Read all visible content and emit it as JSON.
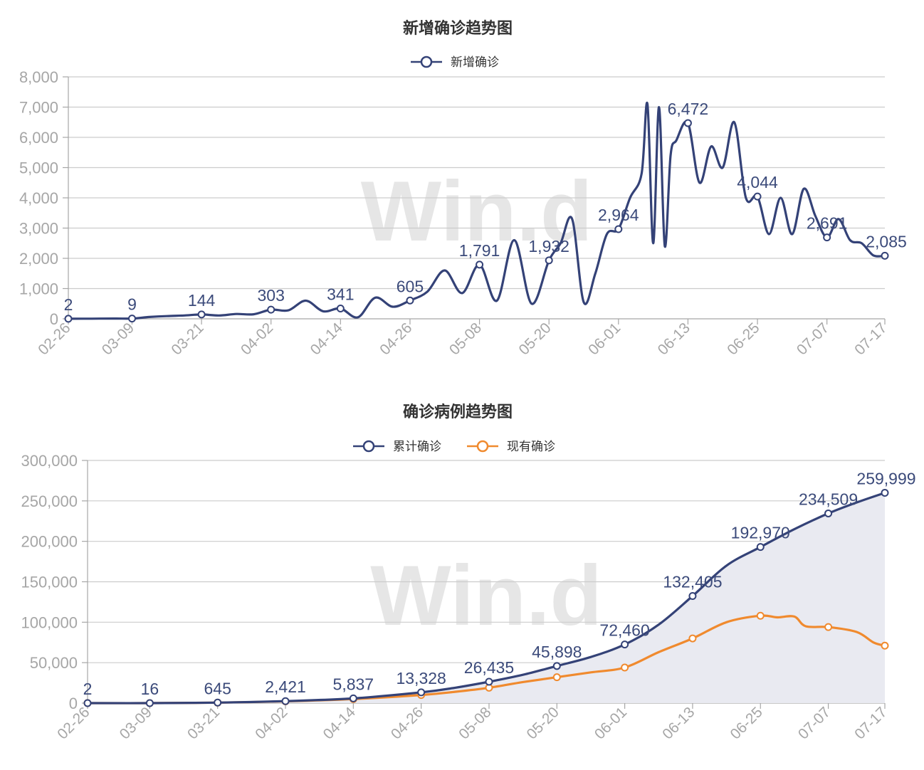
{
  "watermark": "Win.d",
  "colors": {
    "navy": "#344277",
    "orange": "#f08a2e",
    "grid": "#cccccc",
    "axis": "#a6a6a6",
    "area": "#e9eaf1"
  },
  "chart_data": [
    {
      "type": "line",
      "title": "新增确诊趋势图",
      "legend": [
        "新增确诊"
      ],
      "legend_position": "top-center",
      "grid": true,
      "ylim": [
        0,
        8000
      ],
      "yticks": [
        "0",
        "1,000",
        "2,000",
        "3,000",
        "4,000",
        "5,000",
        "6,000",
        "7,000",
        "8,000"
      ],
      "xticks": [
        "02-26",
        "03-09",
        "03-21",
        "04-02",
        "04-14",
        "04-26",
        "05-08",
        "05-20",
        "06-01",
        "06-13",
        "06-25",
        "07-07",
        "07-17"
      ],
      "series": [
        {
          "name": "新增确诊",
          "color": "#344277",
          "x": [
            "02-26",
            "03-02",
            "03-06",
            "03-09",
            "03-12",
            "03-15",
            "03-18",
            "03-21",
            "03-24",
            "03-27",
            "03-30",
            "04-02",
            "04-05",
            "04-08",
            "04-11",
            "04-14",
            "04-17",
            "04-20",
            "04-23",
            "04-26",
            "04-29",
            "05-02",
            "05-05",
            "05-08",
            "05-11",
            "05-14",
            "05-17",
            "05-20",
            "05-22",
            "05-24",
            "05-26",
            "05-28",
            "05-30",
            "06-01",
            "06-03",
            "06-05",
            "06-06",
            "06-07",
            "06-08",
            "06-09",
            "06-10",
            "06-11",
            "06-13",
            "06-15",
            "06-17",
            "06-19",
            "06-21",
            "06-23",
            "06-25",
            "06-27",
            "06-29",
            "07-01",
            "07-03",
            "07-05",
            "07-07",
            "07-09",
            "07-11",
            "07-13",
            "07-15",
            "07-17"
          ],
          "y": [
            2,
            5,
            10,
            9,
            60,
            90,
            110,
            144,
            110,
            160,
            150,
            303,
            280,
            600,
            250,
            341,
            50,
            700,
            400,
            605,
            900,
            1600,
            850,
            1791,
            600,
            2600,
            500,
            1932,
            2500,
            3300,
            550,
            1500,
            2800,
            2964,
            4000,
            4800,
            7100,
            2500,
            7000,
            2400,
            5400,
            5900,
            6472,
            4500,
            5700,
            5000,
            6500,
            4000,
            4044,
            2800,
            4000,
            2800,
            4300,
            3400,
            2691,
            3300,
            2600,
            2500,
            2100,
            2085
          ],
          "labeled_points": [
            {
              "x": "02-26",
              "value": 2,
              "label": "2"
            },
            {
              "x": "03-09",
              "value": 9,
              "label": "9"
            },
            {
              "x": "03-21",
              "value": 144,
              "label": "144"
            },
            {
              "x": "04-02",
              "value": 303,
              "label": "303"
            },
            {
              "x": "04-14",
              "value": 341,
              "label": "341"
            },
            {
              "x": "04-26",
              "value": 605,
              "label": "605"
            },
            {
              "x": "05-08",
              "value": 1791,
              "label": "1,791"
            },
            {
              "x": "05-20",
              "value": 1932,
              "label": "1,932"
            },
            {
              "x": "06-01",
              "value": 2964,
              "label": "2,964"
            },
            {
              "x": "06-13",
              "value": 6472,
              "label": "6,472"
            },
            {
              "x": "06-25",
              "value": 4044,
              "label": "4,044"
            },
            {
              "x": "07-07",
              "value": 2691,
              "label": "2,691"
            },
            {
              "x": "07-17",
              "value": 2085,
              "label": "2,085"
            }
          ]
        }
      ]
    },
    {
      "type": "line",
      "title": "确诊病例趋势图",
      "legend": [
        "累计确诊",
        "现有确诊"
      ],
      "legend_position": "top-center",
      "grid": true,
      "ylim": [
        0,
        300000
      ],
      "yticks": [
        "0",
        "50,000",
        "100,000",
        "150,000",
        "200,000",
        "250,000",
        "300,000"
      ],
      "xticks": [
        "02-26",
        "03-09",
        "03-21",
        "04-02",
        "04-14",
        "04-26",
        "05-08",
        "05-20",
        "06-01",
        "06-13",
        "06-25",
        "07-07",
        "07-17"
      ],
      "series": [
        {
          "name": "累计确诊",
          "color": "#344277",
          "area": true,
          "x": [
            "02-26",
            "03-09",
            "03-21",
            "04-02",
            "04-14",
            "04-26",
            "05-02",
            "05-08",
            "05-14",
            "05-20",
            "05-26",
            "06-01",
            "06-07",
            "06-13",
            "06-19",
            "06-25",
            "07-01",
            "07-07",
            "07-12",
            "07-17"
          ],
          "y": [
            2,
            16,
            645,
            2421,
            5837,
            13328,
            19000,
            26435,
            35000,
            45898,
            57000,
            72460,
            97000,
            132405,
            170000,
            192970,
            215000,
            234509,
            248000,
            259999
          ],
          "labeled_points": [
            {
              "x": "02-26",
              "value": 2,
              "label": "2"
            },
            {
              "x": "03-09",
              "value": 16,
              "label": "16"
            },
            {
              "x": "03-21",
              "value": 645,
              "label": "645"
            },
            {
              "x": "04-02",
              "value": 2421,
              "label": "2,421"
            },
            {
              "x": "04-14",
              "value": 5837,
              "label": "5,837"
            },
            {
              "x": "04-26",
              "value": 13328,
              "label": "13,328"
            },
            {
              "x": "05-08",
              "value": 26435,
              "label": "26,435"
            },
            {
              "x": "05-20",
              "value": 45898,
              "label": "45,898"
            },
            {
              "x": "06-01",
              "value": 72460,
              "label": "72,460"
            },
            {
              "x": "06-13",
              "value": 132405,
              "label": "132,405"
            },
            {
              "x": "06-25",
              "value": 192970,
              "label": "192,970"
            },
            {
              "x": "07-07",
              "value": 234509,
              "label": "234,509"
            },
            {
              "x": "07-17",
              "value": 259999,
              "label": "259,999"
            }
          ]
        },
        {
          "name": "现有确诊",
          "color": "#f08a2e",
          "x": [
            "02-26",
            "03-09",
            "03-21",
            "04-02",
            "04-14",
            "04-26",
            "05-02",
            "05-08",
            "05-14",
            "05-20",
            "05-26",
            "06-01",
            "06-07",
            "06-13",
            "06-19",
            "06-25",
            "06-28",
            "07-01",
            "07-03",
            "07-07",
            "07-12",
            "07-15",
            "07-17"
          ],
          "y": [
            2,
            15,
            600,
            2200,
            5000,
            10000,
            14000,
            19000,
            26000,
            32000,
            38000,
            44000,
            63000,
            80000,
            100000,
            108000,
            106000,
            107000,
            95000,
            94000,
            88000,
            75000,
            71000
          ],
          "markers_at": [
            "02-26",
            "03-09",
            "03-21",
            "04-02",
            "04-14",
            "04-26",
            "05-08",
            "05-20",
            "06-01",
            "06-13",
            "06-25",
            "07-07",
            "07-17"
          ]
        }
      ]
    }
  ]
}
